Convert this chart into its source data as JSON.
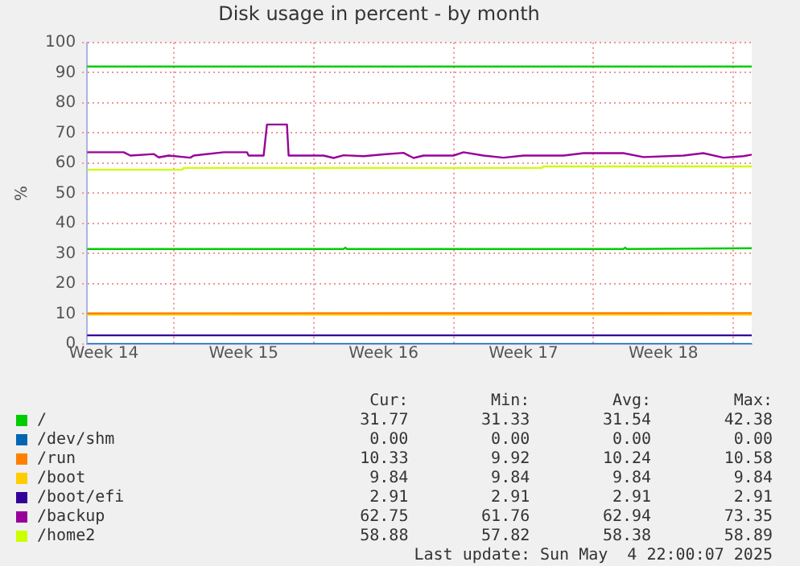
{
  "chart_data": {
    "type": "line",
    "title": "Disk usage in percent - by month",
    "ylabel": "%",
    "xlim": [
      "2025-04-01T16:00",
      "2025-05-04T22:00"
    ],
    "xticks": [
      {
        "value": "2025-04-02T12:00",
        "label": "Week 14"
      },
      {
        "value": "2025-04-06T00:00",
        "label": null
      },
      {
        "value": "2025-04-09T12:00",
        "label": "Week 15"
      },
      {
        "value": "2025-04-13T00:00",
        "label": null
      },
      {
        "value": "2025-04-16T12:00",
        "label": "Week 16"
      },
      {
        "value": "2025-04-20T00:00",
        "label": null
      },
      {
        "value": "2025-04-23T12:00",
        "label": "Week 17"
      },
      {
        "value": "2025-04-27T00:00",
        "label": null
      },
      {
        "value": "2025-04-30T12:00",
        "label": "Week 18"
      },
      {
        "value": "2025-05-04T00:00",
        "label": null
      }
    ],
    "ylim": [
      0,
      100
    ],
    "yticks": [
      0,
      10,
      20,
      30,
      40,
      50,
      60,
      70,
      80,
      90,
      100
    ],
    "grid": true,
    "legend": "bottom",
    "marker": "none",
    "line_style": "solid",
    "ref_lines": [
      {
        "axis": "y",
        "value": 92,
        "color": "#00cc00"
      }
    ],
    "series": [
      {
        "name": "/",
        "color": "#00cc00",
        "x": [
          "2025-04-01T16:00",
          "2025-04-14T12:00",
          "2025-04-14T14:00",
          "2025-04-14T16:00",
          "2025-04-28T12:00",
          "2025-04-28T14:00",
          "2025-04-28T16:00",
          "2025-05-04T22:00"
        ],
        "values": [
          31.5,
          31.5,
          32,
          31.5,
          31.5,
          32,
          31.5,
          31.8
        ]
      },
      {
        "name": "/dev/shm",
        "color": "#0066b3",
        "x": [
          "2025-04-01T16:00",
          "2025-05-04T22:00"
        ],
        "values": [
          0,
          0
        ]
      },
      {
        "name": "/run",
        "color": "#ff8000",
        "x": [
          "2025-04-01T16:00",
          "2025-05-04T22:00"
        ],
        "values": [
          10.2,
          10.3
        ]
      },
      {
        "name": "/boot",
        "color": "#ffcc00",
        "x": [
          "2025-04-01T16:00",
          "2025-05-04T22:00"
        ],
        "values": [
          9.8,
          9.8
        ]
      },
      {
        "name": "/boot/efi",
        "color": "#330099",
        "x": [
          "2025-04-01T16:00",
          "2025-05-04T22:00"
        ],
        "values": [
          2.9,
          2.9
        ]
      },
      {
        "name": "/backup",
        "color": "#990099",
        "x": [
          "2025-04-01T16:00",
          "2025-04-03T12:00",
          "2025-04-03T20:00",
          "2025-04-05T00:00",
          "2025-04-05T06:00",
          "2025-04-05T18:00",
          "2025-04-06T20:00",
          "2025-04-07T00:00",
          "2025-04-08T12:00",
          "2025-04-09T16:00",
          "2025-04-09T18:00",
          "2025-04-10T12:00",
          "2025-04-10T16:00",
          "2025-04-11T16:00",
          "2025-04-11T18:00",
          "2025-04-13T12:00",
          "2025-04-14T00:00",
          "2025-04-14T12:00",
          "2025-04-15T12:00",
          "2025-04-16T12:00",
          "2025-04-17T12:00",
          "2025-04-18T00:00",
          "2025-04-18T12:00",
          "2025-04-20T00:00",
          "2025-04-20T12:00",
          "2025-04-21T12:00",
          "2025-04-22T12:00",
          "2025-04-23T12:00",
          "2025-04-25T12:00",
          "2025-04-26T12:00",
          "2025-04-28T12:00",
          "2025-04-29T12:00",
          "2025-05-01T12:00",
          "2025-05-02T12:00",
          "2025-05-03T12:00",
          "2025-05-04T12:00",
          "2025-05-04T22:00"
        ],
        "values": [
          63.6,
          63.6,
          62.5,
          63,
          61.9,
          62.5,
          61.8,
          62.5,
          63.6,
          63.6,
          62.5,
          62.5,
          72.8,
          72.8,
          62.5,
          62.5,
          61.7,
          62.6,
          62.3,
          62.9,
          63.4,
          61.7,
          62.5,
          62.5,
          63.6,
          62.5,
          61.8,
          62.5,
          62.5,
          63.3,
          63.3,
          62,
          62.5,
          63.3,
          61.8,
          62.3,
          62.8
        ]
      },
      {
        "name": "/home2",
        "color": "#ccff00",
        "x": [
          "2025-04-01T16:00",
          "2025-04-06T10:00",
          "2025-04-06T12:00",
          "2025-04-24T10:00",
          "2025-04-24T12:00",
          "2025-05-04T22:00"
        ],
        "values": [
          57.8,
          57.8,
          58.4,
          58.4,
          58.9,
          58.9
        ]
      }
    ],
    "annotations": [
      "Cur:",
      "Min:",
      "Avg:",
      "Max:",
      "31.77",
      "31.33",
      "31.54",
      "42.38",
      "0.00",
      "0.00",
      "0.00",
      "0.00",
      "10.33",
      "9.92",
      "10.24",
      "10.58",
      "9.84",
      "9.84",
      "9.84",
      "9.84",
      "2.91",
      "2.91",
      "2.91",
      "2.91",
      "62.75",
      "61.76",
      "62.94",
      "73.35",
      "58.88",
      "57.82",
      "58.38",
      "58.89",
      "Last update: Sun May  4 22:00:07 2025"
    ]
  }
}
